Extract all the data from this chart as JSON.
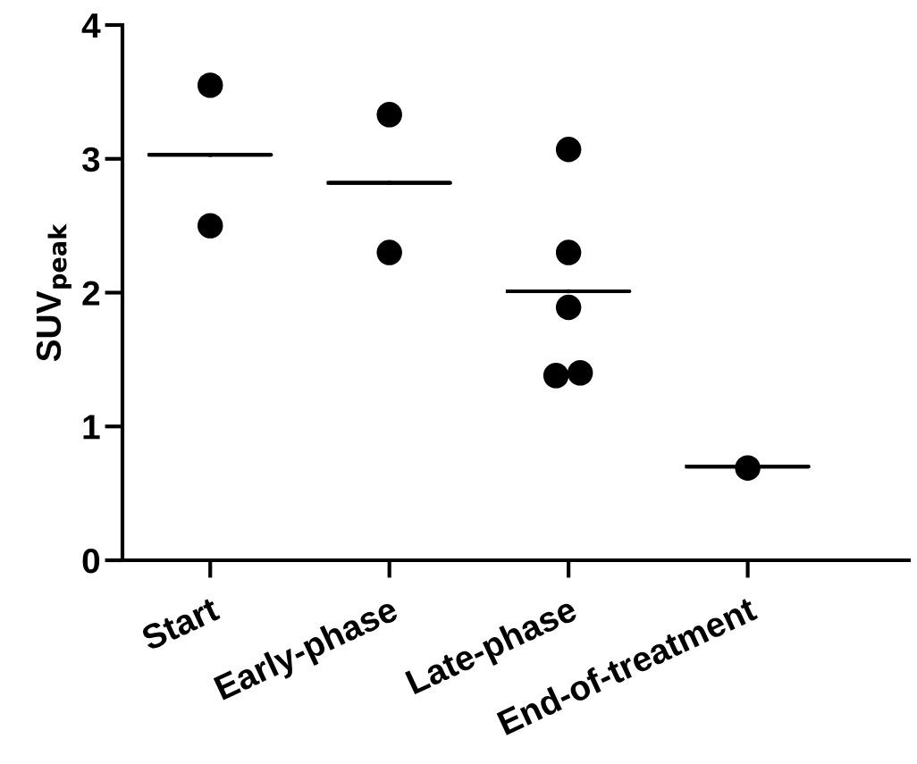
{
  "chart_data": {
    "type": "scatter",
    "ylabel": "SUV$_{peak}$",
    "categories": [
      "Start",
      "Early-phase",
      "Late-phase",
      "End-of-treatment"
    ],
    "ylim": [
      0,
      4
    ],
    "yticks": [
      0,
      1,
      2,
      3,
      4
    ],
    "grid": false,
    "legend": false,
    "marker": "circle",
    "series": [
      {
        "color": "#000000",
        "x": [
          "Start",
          "Start",
          "Early-phase",
          "Early-phase",
          "Late-phase",
          "Late-phase",
          "Late-phase",
          "Late-phase",
          "Late-phase",
          "End-of-treatment"
        ],
        "values": [
          3.55,
          2.5,
          3.33,
          2.3,
          3.07,
          2.3,
          1.89,
          1.38,
          1.4,
          0.69
        ]
      },
      {
        "type": "box",
        "color": "#000000",
        "boxes": [
          {
            "low": 3.03,
            "q1": 3.03,
            "median": 3.03,
            "q3": 3.03,
            "high": 3.03
          },
          {
            "low": 2.82,
            "q1": 2.82,
            "median": 2.82,
            "q3": 2.82,
            "high": 2.82
          },
          {
            "low": 2.01,
            "q1": 2.01,
            "median": 2.01,
            "q3": 2.01,
            "high": 2.01
          },
          {
            "low": 0.7,
            "q1": 0.7,
            "median": 0.7,
            "q3": 0.7,
            "high": 0.7
          }
        ]
      }
    ]
  }
}
